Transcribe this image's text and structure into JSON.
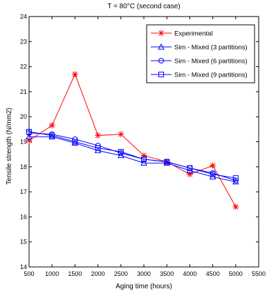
{
  "chart_data": {
    "type": "line",
    "title": "T = 80°C (second case)",
    "xlabel": "Aging time (hours)",
    "ylabel": "Tensile strength  (N/mm2)",
    "xlim": [
      500,
      5500
    ],
    "ylim": [
      14,
      24
    ],
    "xticks": [
      500,
      1000,
      1500,
      2000,
      2500,
      3000,
      3500,
      4000,
      4500,
      5000,
      5500
    ],
    "yticks": [
      14,
      15,
      16,
      17,
      18,
      19,
      20,
      21,
      22,
      23,
      24
    ],
    "grid": false,
    "legend_position": "top-right",
    "series": [
      {
        "name": "Experimental",
        "color": "#ff0000",
        "marker": "asterisk",
        "x": [
          500,
          1000,
          1500,
          2000,
          2500,
          3000,
          3500,
          4000,
          4500,
          5000
        ],
        "values": [
          19.05,
          19.65,
          21.7,
          19.25,
          19.3,
          18.45,
          18.2,
          17.7,
          18.05,
          16.4
        ]
      },
      {
        "name": "Sim - Mixed (3 partitions)",
        "color": "#0000ff",
        "marker": "triangle",
        "x": [
          500,
          1000,
          1500,
          2000,
          2500,
          3000,
          3500,
          4000,
          4500,
          5000
        ],
        "values": [
          19.2,
          19.2,
          18.95,
          18.65,
          18.45,
          18.15,
          18.15,
          17.85,
          17.6,
          17.4
        ]
      },
      {
        "name": "Sim - Mixed (6 partitions)",
        "color": "#0000ff",
        "marker": "circle",
        "x": [
          500,
          1000,
          1500,
          2000,
          2500,
          3000,
          3500,
          4000,
          4500,
          5000
        ],
        "values": [
          19.35,
          19.3,
          19.1,
          18.85,
          18.55,
          18.3,
          18.2,
          17.95,
          17.75,
          17.45
        ]
      },
      {
        "name": "Sim - Mixed (9 partitions)",
        "color": "#0000ff",
        "marker": "square",
        "x": [
          500,
          1000,
          1500,
          2000,
          2500,
          3000,
          3500,
          4000,
          4500,
          5000
        ],
        "values": [
          19.4,
          19.25,
          19.0,
          18.75,
          18.6,
          18.3,
          18.2,
          17.95,
          17.7,
          17.55
        ]
      }
    ]
  }
}
